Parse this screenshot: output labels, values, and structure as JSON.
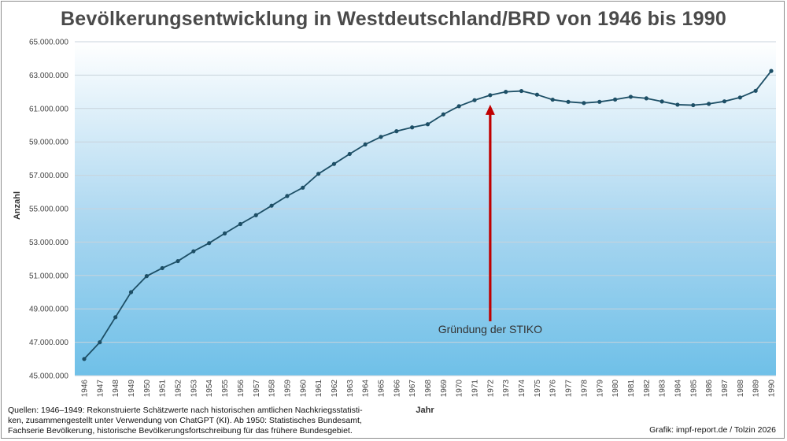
{
  "chart_data": {
    "type": "line",
    "title": "Bevölkerungsentwicklung in Westdeutschland/BRD von 1946 bis 1990",
    "xlabel": "Jahr",
    "ylabel": "Anzahl",
    "ylim": [
      45000000,
      65000000
    ],
    "yticks": [
      "45.000.000",
      "47.000.000",
      "49.000.000",
      "51.000.000",
      "53.000.000",
      "55.000.000",
      "57.000.000",
      "59.000.000",
      "61.000.000",
      "63.000.000",
      "65.000.000"
    ],
    "x": [
      "1946",
      "1947",
      "1948",
      "1949",
      "1950",
      "1951",
      "1952",
      "1953",
      "1954",
      "1955",
      "1956",
      "1957",
      "1958",
      "1959",
      "1960",
      "1961",
      "1962",
      "1963",
      "1964",
      "1965",
      "1966",
      "1967",
      "1968",
      "1969",
      "1970",
      "1971",
      "1972",
      "1973",
      "1974",
      "1975",
      "1976",
      "1977",
      "1978",
      "1979",
      "1980",
      "1981",
      "1982",
      "1983",
      "1984",
      "1985",
      "1986",
      "1987",
      "1988",
      "1989",
      "1990"
    ],
    "values": [
      46000000,
      47000000,
      48500000,
      50000000,
      50960000,
      51440000,
      51860000,
      52450000,
      52940000,
      53520000,
      54080000,
      54610000,
      55180000,
      55760000,
      56260000,
      57090000,
      57680000,
      58280000,
      58850000,
      59300000,
      59640000,
      59870000,
      60060000,
      60650000,
      61140000,
      61500000,
      61800000,
      62000000,
      62050000,
      61830000,
      61530000,
      61400000,
      61330000,
      61400000,
      61540000,
      61700000,
      61610000,
      61420000,
      61230000,
      61200000,
      61280000,
      61430000,
      61660000,
      62060000,
      63250000
    ],
    "grid": true,
    "legend": "none",
    "line_color": "#1d4f66",
    "arrow_color": "#c00000",
    "annotation": {
      "text": "Gründung der STIKO",
      "x": "1972"
    }
  },
  "footer": {
    "sources_lines": [
      "Quellen: 1946–1949: Rekonstruierte Schätzwerte nach historischen amtlichen Nachkriegsstatisti-",
      "ken, zusammengestellt unter Verwendung von ChatGPT (KI). Ab 1950: Statistisches Bundesamt,",
      "Fachserie Bevölkerung, historische Bevölkerungsfortschreibung für das frühere Bundesgebiet."
    ],
    "credit": "Grafik: impf-report.de / Tolzin 2026"
  }
}
